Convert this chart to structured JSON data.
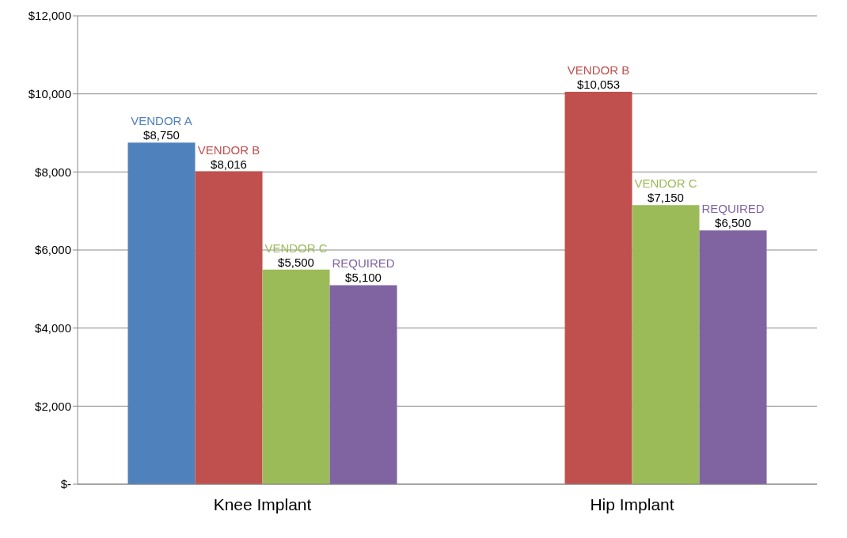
{
  "chart_data": {
    "type": "bar",
    "categories": [
      "Knee Implant",
      "Hip Implant"
    ],
    "series": [
      {
        "name": "VENDOR A",
        "color": "#4f81bd",
        "values": [
          8750,
          null
        ],
        "value_labels": [
          "$8,750",
          null
        ]
      },
      {
        "name": "VENDOR B",
        "color": "#c0504d",
        "values": [
          8016,
          10053
        ],
        "value_labels": [
          "$8,016",
          "$10,053"
        ]
      },
      {
        "name": "VENDOR C",
        "color": "#9bbb59",
        "values": [
          5500,
          7150
        ],
        "value_labels": [
          "$5,500",
          "$7,150"
        ]
      },
      {
        "name": "REQUIRED",
        "color": "#8064a2",
        "values": [
          5100,
          6500
        ],
        "value_labels": [
          "$5,100",
          "$6,500"
        ]
      }
    ],
    "ylim": [
      0,
      12000
    ],
    "yticks": [
      {
        "value": 0,
        "label": "$-"
      },
      {
        "value": 2000,
        "label": "$2,000"
      },
      {
        "value": 4000,
        "label": "$4,000"
      },
      {
        "value": 6000,
        "label": "$6,000"
      },
      {
        "value": 8000,
        "label": "$8,000"
      },
      {
        "value": 10000,
        "label": "$10,000"
      },
      {
        "value": 12000,
        "label": "$12,000"
      }
    ],
    "grid": "y",
    "legend": false
  }
}
